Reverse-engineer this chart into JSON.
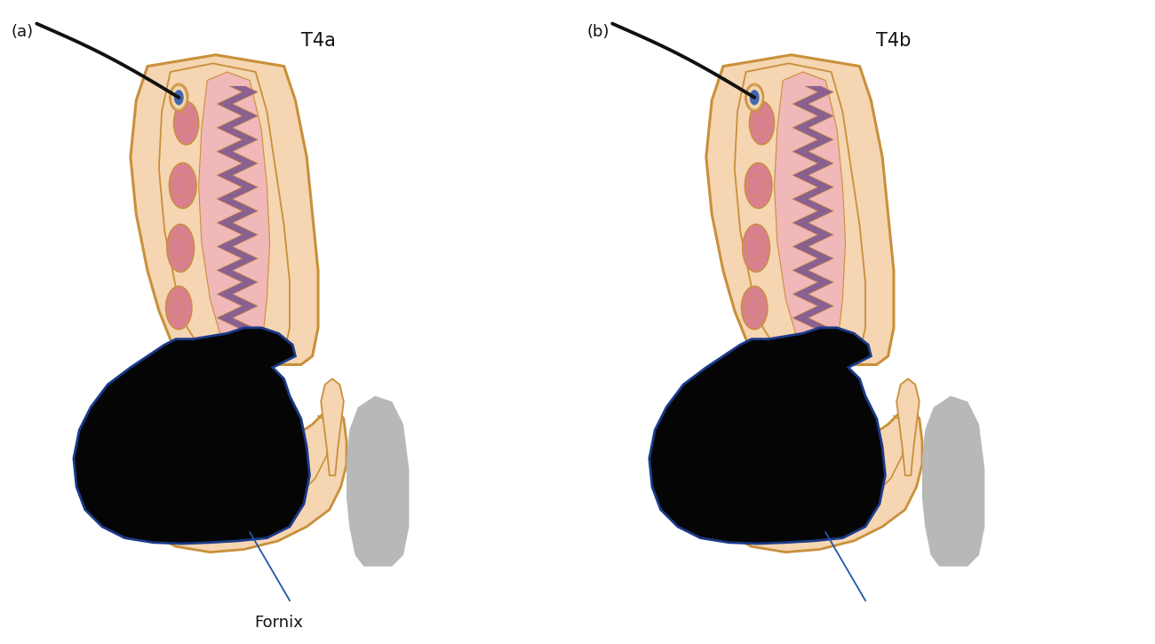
{
  "fig_width": 13.0,
  "fig_height": 7.25,
  "dpi": 100,
  "bg_color": "#ffffff",
  "panel_a_label": "(a)",
  "panel_b_label": "(b)",
  "panel_a_title": "T4a",
  "panel_b_title": "T4b",
  "fornix_label": "Fornix",
  "skin_color": "#f5d5b2",
  "skin_outline": "#c8903a",
  "conjunctiva_color": "#f0b8b8",
  "purple_duct": "#8a6090",
  "pink_gland": "#d98090",
  "tumor_color": "#050505",
  "tumor_outline": "#1a3a8a",
  "gray_bone": "#b8b8b8",
  "gray_bone2": "#a0a0a0",
  "hair_color": "#111111",
  "follicle_color": "#4466aa",
  "line_color": "#2255aa",
  "annotation_color": "#111111",
  "title_fontsize": 15,
  "label_fontsize": 13,
  "fornix_fontsize": 13
}
